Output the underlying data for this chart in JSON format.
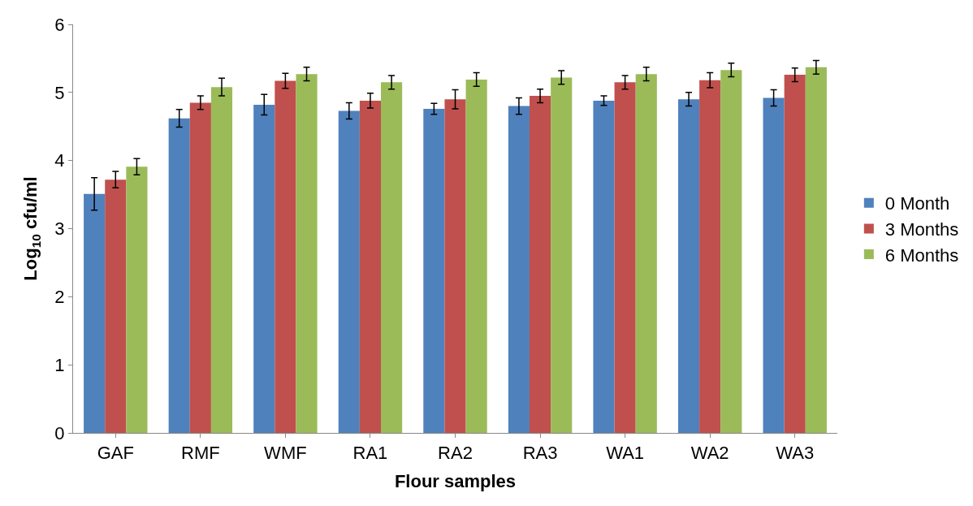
{
  "chart_data": {
    "type": "bar",
    "xlabel": "Flour samples",
    "ylabel": "Log$_{10}$ cfu/ml",
    "categories": [
      "GAF",
      "RMF",
      "WMF",
      "RA1",
      "RA2",
      "RA3",
      "WA1",
      "WA2",
      "WA3"
    ],
    "series": [
      {
        "name": "0 Month",
        "color": "#4f81bd",
        "values": [
          3.51,
          4.62,
          4.82,
          4.73,
          4.76,
          4.8,
          4.88,
          4.9,
          4.92
        ],
        "errors": [
          0.24,
          0.13,
          0.15,
          0.12,
          0.08,
          0.12,
          0.07,
          0.1,
          0.12
        ]
      },
      {
        "name": "3 Months",
        "color": "#c0504d",
        "values": [
          3.72,
          4.85,
          5.17,
          4.88,
          4.9,
          4.95,
          5.15,
          5.18,
          5.26
        ],
        "errors": [
          0.12,
          0.1,
          0.11,
          0.11,
          0.14,
          0.1,
          0.1,
          0.11,
          0.1
        ]
      },
      {
        "name": "6 Months",
        "color": "#9bbb59",
        "values": [
          3.91,
          5.08,
          5.27,
          5.15,
          5.19,
          5.22,
          5.27,
          5.33,
          5.37
        ],
        "errors": [
          0.12,
          0.13,
          0.1,
          0.1,
          0.1,
          0.1,
          0.1,
          0.1,
          0.1
        ]
      }
    ],
    "ylim": [
      0,
      6
    ],
    "yticks": [
      0,
      1,
      2,
      3,
      4,
      5,
      6
    ],
    "legend": "right"
  }
}
